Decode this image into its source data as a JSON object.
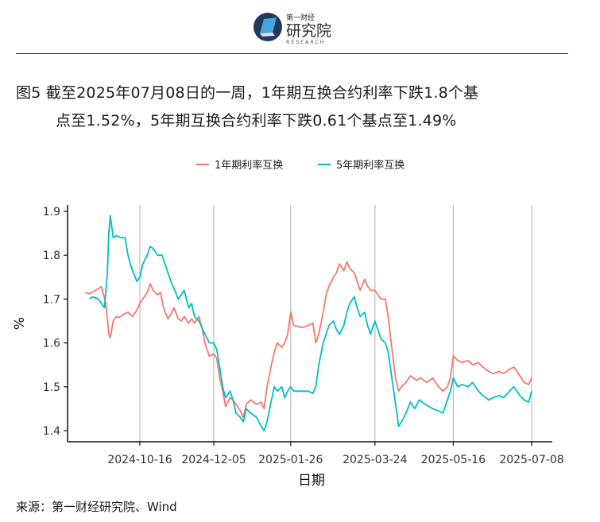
{
  "brand": {
    "name_cn": "第一财经",
    "name_big": "研究院",
    "name_en": "RESEARCH"
  },
  "title_line1": "图5  截至2025年07月08日的一周，1年期互换合约利率下跌1.8个基",
  "title_line2": "点至1.52%，5年期互换合约利率下跌0.61个基点至1.49%",
  "source": "来源：第一财经研究院、Wind",
  "colors": {
    "series1": "#F8766D",
    "series2": "#00BFC4",
    "grid": "#bdbdbd",
    "axis": "#111111"
  },
  "chart_data": {
    "type": "line",
    "xlabel": "日期",
    "ylabel": "%",
    "ylim": [
      1.37,
      1.92
    ],
    "yticks": [
      "1.4",
      "1.5",
      "1.6",
      "1.7",
      "1.8",
      "1.9"
    ],
    "xlim": [
      "2024-09-01",
      "2025-07-12"
    ],
    "xticks": [
      "2024-10-16",
      "2024-12-05",
      "2025-01-26",
      "2025-03-24",
      "2025-05-16",
      "2025-07-08"
    ],
    "grid": "vertical at x ticks",
    "legend_position": "top",
    "series": [
      {
        "name": "1年期利率互换",
        "points": [
          [
            "2024-09-09",
            1.715
          ],
          [
            "2024-09-12",
            1.712
          ],
          [
            "2024-09-16",
            1.72
          ],
          [
            "2024-09-20",
            1.728
          ],
          [
            "2024-09-23",
            1.69
          ],
          [
            "2024-09-25",
            1.62
          ],
          [
            "2024-09-26",
            1.612
          ],
          [
            "2024-09-28",
            1.65
          ],
          [
            "2024-09-30",
            1.66
          ],
          [
            "2024-10-02",
            1.658
          ],
          [
            "2024-10-05",
            1.665
          ],
          [
            "2024-10-08",
            1.67
          ],
          [
            "2024-10-11",
            1.66
          ],
          [
            "2024-10-14",
            1.675
          ],
          [
            "2024-10-16",
            1.69
          ],
          [
            "2024-10-18",
            1.7
          ],
          [
            "2024-10-21",
            1.715
          ],
          [
            "2024-10-23",
            1.735
          ],
          [
            "2024-10-25",
            1.72
          ],
          [
            "2024-10-28",
            1.71
          ],
          [
            "2024-10-30",
            1.715
          ],
          [
            "2024-11-01",
            1.68
          ],
          [
            "2024-11-04",
            1.655
          ],
          [
            "2024-11-06",
            1.665
          ],
          [
            "2024-11-08",
            1.68
          ],
          [
            "2024-11-11",
            1.655
          ],
          [
            "2024-11-13",
            1.65
          ],
          [
            "2024-11-15",
            1.66
          ],
          [
            "2024-11-18",
            1.645
          ],
          [
            "2024-11-20",
            1.655
          ],
          [
            "2024-11-22",
            1.645
          ],
          [
            "2024-11-25",
            1.66
          ],
          [
            "2024-11-27",
            1.635
          ],
          [
            "2024-11-29",
            1.6
          ],
          [
            "2024-12-02",
            1.57
          ],
          [
            "2024-12-05",
            1.575
          ],
          [
            "2024-12-07",
            1.565
          ],
          [
            "2024-12-09",
            1.52
          ],
          [
            "2024-12-11",
            1.49
          ],
          [
            "2024-12-13",
            1.455
          ],
          [
            "2024-12-16",
            1.475
          ],
          [
            "2024-12-18",
            1.47
          ],
          [
            "2024-12-20",
            1.46
          ],
          [
            "2024-12-23",
            1.445
          ],
          [
            "2024-12-25",
            1.43
          ],
          [
            "2024-12-27",
            1.46
          ],
          [
            "2024-12-30",
            1.47
          ],
          [
            "2025-01-03",
            1.46
          ],
          [
            "2025-01-06",
            1.465
          ],
          [
            "2025-01-08",
            1.45
          ],
          [
            "2025-01-10",
            1.5
          ],
          [
            "2025-01-13",
            1.55
          ],
          [
            "2025-01-15",
            1.58
          ],
          [
            "2025-01-17",
            1.6
          ],
          [
            "2025-01-20",
            1.59
          ],
          [
            "2025-01-22",
            1.6
          ],
          [
            "2025-01-24",
            1.62
          ],
          [
            "2025-01-26",
            1.67
          ],
          [
            "2025-01-28",
            1.64
          ],
          [
            "2025-02-03",
            1.635
          ],
          [
            "2025-02-07",
            1.64
          ],
          [
            "2025-02-10",
            1.645
          ],
          [
            "2025-02-12",
            1.6
          ],
          [
            "2025-02-14",
            1.62
          ],
          [
            "2025-02-17",
            1.67
          ],
          [
            "2025-02-19",
            1.71
          ],
          [
            "2025-02-21",
            1.73
          ],
          [
            "2025-02-24",
            1.75
          ],
          [
            "2025-02-26",
            1.76
          ],
          [
            "2025-02-28",
            1.78
          ],
          [
            "2025-03-03",
            1.765
          ],
          [
            "2025-03-05",
            1.785
          ],
          [
            "2025-03-07",
            1.77
          ],
          [
            "2025-03-10",
            1.76
          ],
          [
            "2025-03-12",
            1.74
          ],
          [
            "2025-03-14",
            1.72
          ],
          [
            "2025-03-17",
            1.745
          ],
          [
            "2025-03-19",
            1.73
          ],
          [
            "2025-03-21",
            1.72
          ],
          [
            "2025-03-24",
            1.72
          ],
          [
            "2025-03-26",
            1.71
          ],
          [
            "2025-03-28",
            1.7
          ],
          [
            "2025-03-31",
            1.7
          ],
          [
            "2025-04-02",
            1.66
          ],
          [
            "2025-04-04",
            1.6
          ],
          [
            "2025-04-07",
            1.52
          ],
          [
            "2025-04-09",
            1.49
          ],
          [
            "2025-04-11",
            1.5
          ],
          [
            "2025-04-14",
            1.51
          ],
          [
            "2025-04-17",
            1.525
          ],
          [
            "2025-04-21",
            1.515
          ],
          [
            "2025-04-24",
            1.52
          ],
          [
            "2025-04-28",
            1.51
          ],
          [
            "2025-05-02",
            1.52
          ],
          [
            "2025-05-06",
            1.5
          ],
          [
            "2025-05-09",
            1.49
          ],
          [
            "2025-05-12",
            1.5
          ],
          [
            "2025-05-14",
            1.52
          ],
          [
            "2025-05-16",
            1.57
          ],
          [
            "2025-05-19",
            1.56
          ],
          [
            "2025-05-22",
            1.555
          ],
          [
            "2025-05-26",
            1.56
          ],
          [
            "2025-05-29",
            1.55
          ],
          [
            "2025-06-02",
            1.555
          ],
          [
            "2025-06-05",
            1.545
          ],
          [
            "2025-06-09",
            1.535
          ],
          [
            "2025-06-12",
            1.53
          ],
          [
            "2025-06-16",
            1.535
          ],
          [
            "2025-06-19",
            1.53
          ],
          [
            "2025-06-23",
            1.54
          ],
          [
            "2025-06-26",
            1.545
          ],
          [
            "2025-06-30",
            1.525
          ],
          [
            "2025-07-03",
            1.51
          ],
          [
            "2025-07-06",
            1.505
          ],
          [
            "2025-07-08",
            1.52
          ]
        ]
      },
      {
        "name": "5年期利率互换",
        "points": [
          [
            "2024-09-12",
            1.7
          ],
          [
            "2024-09-14",
            1.705
          ],
          [
            "2024-09-18",
            1.7
          ],
          [
            "2024-09-20",
            1.69
          ],
          [
            "2024-09-22",
            1.68
          ],
          [
            "2024-09-24",
            1.76
          ],
          [
            "2024-09-25",
            1.85
          ],
          [
            "2024-09-26",
            1.89
          ],
          [
            "2024-09-28",
            1.84
          ],
          [
            "2024-09-30",
            1.845
          ],
          [
            "2024-10-03",
            1.84
          ],
          [
            "2024-10-06",
            1.84
          ],
          [
            "2024-10-08",
            1.8
          ],
          [
            "2024-10-10",
            1.775
          ],
          [
            "2024-10-14",
            1.74
          ],
          [
            "2024-10-16",
            1.75
          ],
          [
            "2024-10-18",
            1.78
          ],
          [
            "2024-10-21",
            1.8
          ],
          [
            "2024-10-23",
            1.82
          ],
          [
            "2024-10-25",
            1.815
          ],
          [
            "2024-10-28",
            1.8
          ],
          [
            "2024-10-31",
            1.8
          ],
          [
            "2024-11-03",
            1.77
          ],
          [
            "2024-11-06",
            1.74
          ],
          [
            "2024-11-08",
            1.725
          ],
          [
            "2024-11-11",
            1.7
          ],
          [
            "2024-11-13",
            1.71
          ],
          [
            "2024-11-15",
            1.72
          ],
          [
            "2024-11-18",
            1.68
          ],
          [
            "2024-11-20",
            1.69
          ],
          [
            "2024-11-22",
            1.66
          ],
          [
            "2024-11-25",
            1.65
          ],
          [
            "2024-11-27",
            1.635
          ],
          [
            "2024-11-29",
            1.62
          ],
          [
            "2024-12-02",
            1.6
          ],
          [
            "2024-12-05",
            1.6
          ],
          [
            "2024-12-07",
            1.585
          ],
          [
            "2024-12-09",
            1.545
          ],
          [
            "2024-12-11",
            1.5
          ],
          [
            "2024-12-13",
            1.475
          ],
          [
            "2024-12-16",
            1.49
          ],
          [
            "2024-12-18",
            1.47
          ],
          [
            "2024-12-20",
            1.44
          ],
          [
            "2024-12-23",
            1.43
          ],
          [
            "2024-12-25",
            1.42
          ],
          [
            "2024-12-27",
            1.45
          ],
          [
            "2024-12-30",
            1.44
          ],
          [
            "2025-01-03",
            1.43
          ],
          [
            "2025-01-06",
            1.41
          ],
          [
            "2025-01-08",
            1.4
          ],
          [
            "2025-01-10",
            1.42
          ],
          [
            "2025-01-13",
            1.47
          ],
          [
            "2025-01-15",
            1.5
          ],
          [
            "2025-01-17",
            1.49
          ],
          [
            "2025-01-20",
            1.5
          ],
          [
            "2025-01-22",
            1.475
          ],
          [
            "2025-01-24",
            1.49
          ],
          [
            "2025-01-26",
            1.5
          ],
          [
            "2025-01-28",
            1.49
          ],
          [
            "2025-02-03",
            1.49
          ],
          [
            "2025-02-07",
            1.49
          ],
          [
            "2025-02-10",
            1.485
          ],
          [
            "2025-02-12",
            1.5
          ],
          [
            "2025-02-14",
            1.55
          ],
          [
            "2025-02-17",
            1.6
          ],
          [
            "2025-02-19",
            1.62
          ],
          [
            "2025-02-21",
            1.64
          ],
          [
            "2025-02-24",
            1.65
          ],
          [
            "2025-02-26",
            1.63
          ],
          [
            "2025-02-28",
            1.62
          ],
          [
            "2025-03-03",
            1.64
          ],
          [
            "2025-03-05",
            1.67
          ],
          [
            "2025-03-07",
            1.69
          ],
          [
            "2025-03-10",
            1.705
          ],
          [
            "2025-03-12",
            1.68
          ],
          [
            "2025-03-14",
            1.66
          ],
          [
            "2025-03-17",
            1.67
          ],
          [
            "2025-03-19",
            1.64
          ],
          [
            "2025-03-21",
            1.62
          ],
          [
            "2025-03-24",
            1.65
          ],
          [
            "2025-03-26",
            1.63
          ],
          [
            "2025-03-28",
            1.61
          ],
          [
            "2025-03-31",
            1.6
          ],
          [
            "2025-04-02",
            1.58
          ],
          [
            "2025-04-04",
            1.53
          ],
          [
            "2025-04-07",
            1.46
          ],
          [
            "2025-04-09",
            1.41
          ],
          [
            "2025-04-11",
            1.42
          ],
          [
            "2025-04-14",
            1.44
          ],
          [
            "2025-04-17",
            1.465
          ],
          [
            "2025-04-20",
            1.45
          ],
          [
            "2025-04-23",
            1.47
          ],
          [
            "2025-04-27",
            1.46
          ],
          [
            "2025-05-02",
            1.45
          ],
          [
            "2025-05-06",
            1.445
          ],
          [
            "2025-05-09",
            1.44
          ],
          [
            "2025-05-12",
            1.47
          ],
          [
            "2025-05-14",
            1.49
          ],
          [
            "2025-05-16",
            1.52
          ],
          [
            "2025-05-19",
            1.5
          ],
          [
            "2025-05-22",
            1.505
          ],
          [
            "2025-05-26",
            1.5
          ],
          [
            "2025-05-29",
            1.51
          ],
          [
            "2025-06-02",
            1.49
          ],
          [
            "2025-06-05",
            1.48
          ],
          [
            "2025-06-09",
            1.47
          ],
          [
            "2025-06-12",
            1.475
          ],
          [
            "2025-06-16",
            1.48
          ],
          [
            "2025-06-19",
            1.475
          ],
          [
            "2025-06-23",
            1.49
          ],
          [
            "2025-06-26",
            1.5
          ],
          [
            "2025-06-30",
            1.48
          ],
          [
            "2025-07-03",
            1.47
          ],
          [
            "2025-07-06",
            1.465
          ],
          [
            "2025-07-08",
            1.49
          ]
        ]
      }
    ]
  }
}
